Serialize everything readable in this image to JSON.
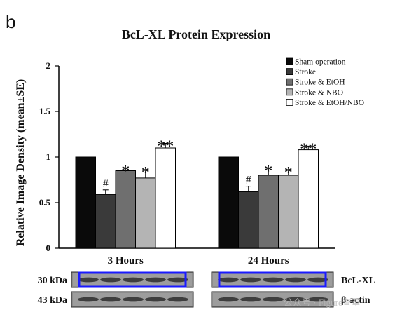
{
  "panel_label": "b",
  "watermark": "公众号 · Figure查重",
  "chart_data": {
    "type": "bar",
    "title": "BcL-XL Protein Expression",
    "ylabel": "Relative Image Density (mean±SE)",
    "xlabel": "",
    "ylim": [
      0,
      2
    ],
    "yticks": [
      "0",
      "0.5",
      "1",
      "1.5",
      "2"
    ],
    "grid": false,
    "legend_position": "top-right",
    "categories": [
      "3 Hours",
      "24 Hours"
    ],
    "series": [
      {
        "name": "Sham operation",
        "color": "#0a0a0a",
        "values": [
          1.0,
          1.0
        ],
        "errors": [
          0.0,
          0.0
        ],
        "marks": [
          "",
          ""
        ]
      },
      {
        "name": "Stroke",
        "color": "#3a3a3a",
        "values": [
          0.59,
          0.62
        ],
        "errors": [
          0.05,
          0.06
        ],
        "marks": [
          "#",
          "#"
        ]
      },
      {
        "name": "Stroke & EtOH",
        "color": "#6f6f6f",
        "values": [
          0.85,
          0.8
        ],
        "errors": [
          0.03,
          0.08
        ],
        "marks": [
          "*",
          "*"
        ]
      },
      {
        "name": "Stroke & NBO",
        "color": "#b4b4b4",
        "values": [
          0.77,
          0.8
        ],
        "errors": [
          0.09,
          0.06
        ],
        "marks": [
          "*",
          "*"
        ]
      },
      {
        "name": "Stroke & EtOH/NBO",
        "color": "#ffffff",
        "values": [
          1.1,
          1.08
        ],
        "errors": [
          0.05,
          0.04
        ],
        "marks": [
          "**",
          "**"
        ]
      }
    ]
  },
  "blots": {
    "rows": [
      {
        "kda": "30 kDa",
        "protein": "BcL-XL",
        "highlighted": true,
        "highlight_color": "#1a1aff"
      },
      {
        "kda": "43 kDa",
        "protein": "β-actin",
        "highlighted": false,
        "highlight_color": ""
      }
    ]
  }
}
